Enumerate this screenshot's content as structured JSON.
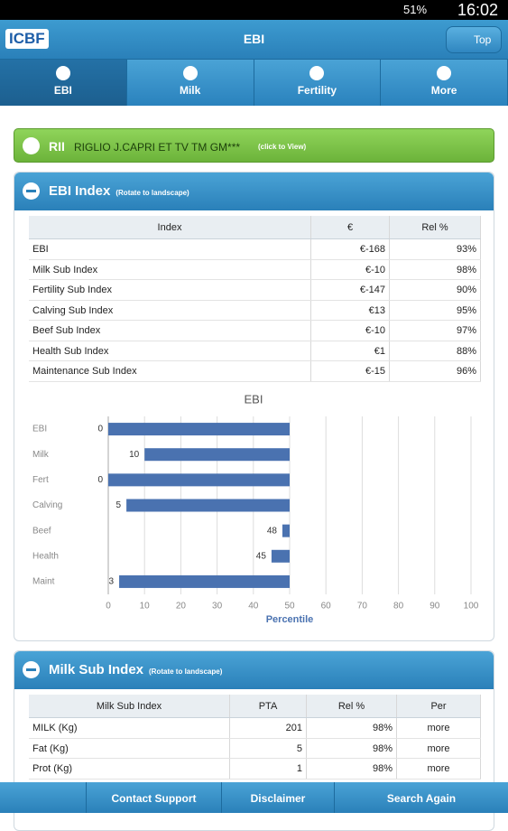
{
  "status_bar": {
    "battery": "51%",
    "time": "16:02"
  },
  "header": {
    "logo": "ICBF",
    "title": "EBI",
    "top_button": "Top"
  },
  "tabs": [
    "EBI",
    "Milk",
    "Fertility",
    "More"
  ],
  "animal": {
    "prefix": "RII",
    "name": "RIGLIO J.CAPRI ET TV TM GM***",
    "hint": "(click to View)"
  },
  "ebi_panel": {
    "title": "EBI Index",
    "hint": "(Rotate to landscape)",
    "table": {
      "header": [
        "Index",
        "€",
        "Rel %"
      ],
      "rows": [
        [
          "EBI",
          "€-168",
          "93%"
        ],
        [
          "Milk Sub Index",
          "€-10",
          "98%"
        ],
        [
          "Fertility Sub Index",
          "€-147",
          "90%"
        ],
        [
          "Calving Sub Index",
          "€13",
          "95%"
        ],
        [
          "Beef Sub Index",
          "€-10",
          "97%"
        ],
        [
          "Health Sub Index",
          "€1",
          "88%"
        ],
        [
          "Maintenance Sub Index",
          "€-15",
          "96%"
        ]
      ]
    }
  },
  "chart_data": {
    "type": "bar",
    "orientation": "horizontal",
    "title": "EBI",
    "x_label": "Percentile",
    "categories": [
      "EBI",
      "Milk",
      "Fert",
      "Calving",
      "Beef",
      "Health",
      "Maint"
    ],
    "values": [
      0,
      10,
      0,
      5,
      48,
      45,
      3
    ],
    "color": "#4a72b0",
    "xlim": [
      0,
      100
    ],
    "xticks": [
      0,
      10,
      20,
      30,
      40,
      50,
      60,
      70,
      80,
      90,
      100
    ],
    "grid": true
  },
  "milk_panel": {
    "title": "Milk Sub Index",
    "hint": "(Rotate to landscape)",
    "table": {
      "header": [
        "Milk Sub Index",
        "PTA",
        "Rel %",
        "Per"
      ],
      "rows": [
        [
          "MILK (Kg)",
          "201",
          "98%",
          "more"
        ],
        [
          "Fat (Kg)",
          "5",
          "98%",
          "more"
        ],
        [
          "Prot (Kg)",
          "1",
          "98%",
          "more"
        ]
      ]
    }
  },
  "footer": [
    "Contact Support",
    "Disclaimer",
    "Search Again"
  ]
}
